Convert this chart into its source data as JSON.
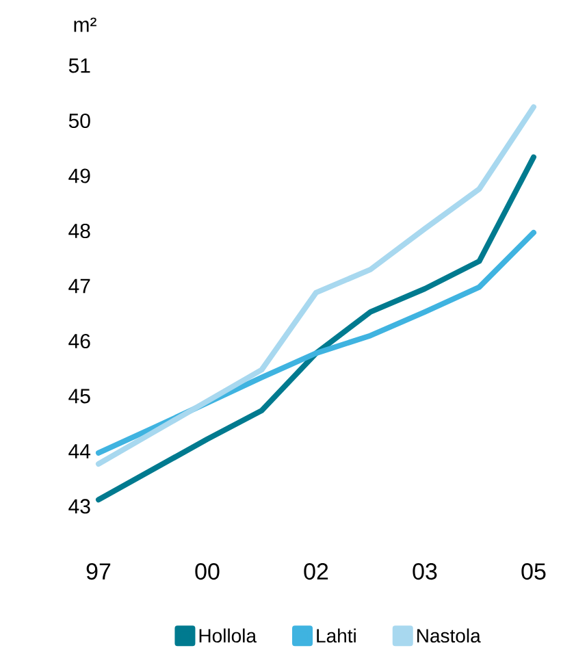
{
  "chart_data": {
    "type": "line",
    "ylabel": "m²",
    "categories": [
      "97",
      null,
      "00",
      null,
      "02",
      null,
      "03",
      null,
      "05"
    ],
    "series": [
      {
        "name": "Hollola",
        "color": "#007a8f",
        "values": [
          43.12,
          43.67,
          44.22,
          44.74,
          45.78,
          46.53,
          46.95,
          47.45,
          49.34
        ]
      },
      {
        "name": "Lahti",
        "color": "#3fb3e0",
        "values": [
          43.97,
          44.42,
          44.88,
          45.34,
          45.78,
          46.1,
          46.53,
          46.98,
          47.97
        ]
      },
      {
        "name": "Nastola",
        "color": "#a8d8ef",
        "values": [
          43.77,
          44.34,
          44.91,
          45.48,
          46.88,
          47.3,
          48.04,
          48.76,
          50.25
        ]
      }
    ],
    "ylim": [
      43,
      51
    ],
    "yticks": [
      43,
      44,
      45,
      46,
      47,
      48,
      49,
      50,
      51
    ],
    "legend": "bottom",
    "marker": "none",
    "line_style": "solid"
  }
}
